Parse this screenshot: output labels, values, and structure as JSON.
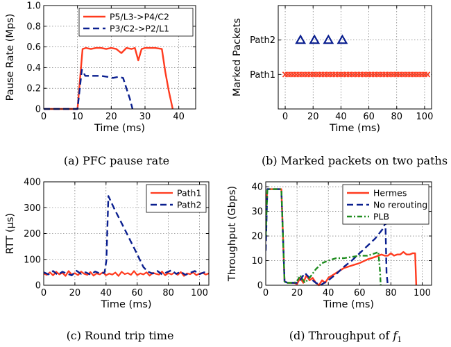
{
  "colors": {
    "red": "#ff3a1e",
    "blue": "#0a1f8f",
    "green": "#1e8c1e"
  },
  "chart_data": [
    {
      "id": "a",
      "type": "line",
      "caption": "(a)  PFC pause rate",
      "xlabel": "Time (ms)",
      "ylabel": "Pause Rate (Mps)",
      "xlim": [
        0,
        45
      ],
      "ylim": [
        0,
        1.0
      ],
      "xticks": [
        0,
        10,
        20,
        30,
        40
      ],
      "yticks": [
        0,
        0.2,
        0.4,
        0.6,
        0.8,
        1.0
      ],
      "ytick_labels": [
        "0",
        "0.2",
        "0.4",
        "0.6",
        "0.8",
        "1.0"
      ],
      "grid": true,
      "legend": "top-right",
      "series": [
        {
          "name": "P5/L3->P4/C2",
          "color": "#ff3a1e",
          "dash": "solid",
          "width": 2.4,
          "x": [
            0,
            10,
            11.5,
            12.5,
            14,
            15.5,
            17,
            18.5,
            20,
            21.5,
            23,
            24.5,
            26,
            27,
            28,
            29,
            30,
            31,
            33,
            35,
            36,
            37,
            38.2
          ],
          "y": [
            0,
            0,
            0.58,
            0.59,
            0.58,
            0.59,
            0.59,
            0.58,
            0.59,
            0.58,
            0.54,
            0.59,
            0.58,
            0.59,
            0.47,
            0.58,
            0.59,
            0.59,
            0.59,
            0.58,
            0.36,
            0.18,
            0
          ]
        },
        {
          "name": "P3/C2->P2/L1",
          "color": "#0a1f8f",
          "dash": "dashed",
          "width": 2.4,
          "x": [
            0,
            10,
            11.3,
            12.3,
            13.5,
            15,
            17,
            19,
            20.5,
            22,
            23.5,
            24.5,
            25.5,
            26.3
          ],
          "y": [
            0,
            0,
            0.38,
            0.32,
            0.32,
            0.32,
            0.32,
            0.31,
            0.3,
            0.31,
            0.3,
            0.2,
            0.1,
            0
          ]
        }
      ]
    },
    {
      "id": "b",
      "type": "scatter",
      "caption": "(b)  Marked packets on two paths",
      "xlabel": "Time (ms)",
      "ylabel": "Marked Packets",
      "xlim": [
        -5,
        105
      ],
      "xticks": [
        0,
        20,
        40,
        60,
        80,
        100
      ],
      "categories": [
        "Path1",
        "Path2"
      ],
      "grid": true,
      "series": [
        {
          "name": "Path1",
          "marker": "x",
          "color": "#ff3a1e",
          "x": [
            0,
            2,
            4,
            6,
            8,
            10,
            12,
            14,
            16,
            18,
            20,
            22,
            24,
            26,
            28,
            30,
            32,
            34,
            36,
            38,
            40,
            42,
            44,
            46,
            48,
            50,
            52,
            54,
            56,
            58,
            60,
            62,
            64,
            66,
            68,
            70,
            72,
            74,
            76,
            78,
            80,
            82,
            84,
            86,
            88,
            90,
            92,
            94,
            96,
            98,
            100,
            102
          ]
        },
        {
          "name": "Path2",
          "marker": "triangle",
          "color": "#0a1f8f",
          "x": [
            11,
            21,
            31,
            41
          ]
        }
      ]
    },
    {
      "id": "c",
      "type": "line",
      "caption": "(c)  Round trip time",
      "xlabel": "Time (ms)",
      "ylabel": "RTT (μs)",
      "xlim": [
        0,
        106
      ],
      "ylim": [
        0,
        400
      ],
      "xticks": [
        0,
        20,
        40,
        60,
        80,
        100
      ],
      "yticks": [
        0,
        100,
        200,
        300,
        400
      ],
      "grid": true,
      "legend": "top-right",
      "series": [
        {
          "name": "Path1",
          "color": "#ff3a1e",
          "dash": "solid",
          "width": 2.2,
          "x": [
            0,
            2,
            4,
            6,
            8,
            10,
            12,
            14,
            16,
            18,
            20,
            22,
            24,
            26,
            28,
            30,
            32,
            34,
            36,
            38,
            40,
            42,
            44,
            46,
            48,
            50,
            52,
            54,
            56,
            58,
            60,
            62,
            64,
            66,
            68,
            70,
            72,
            74,
            76,
            78,
            80,
            82,
            84,
            86,
            88,
            90,
            92,
            94,
            96,
            98,
            100,
            102,
            104,
            106
          ],
          "y": [
            45,
            40,
            50,
            38,
            52,
            42,
            48,
            36,
            55,
            41,
            47,
            39,
            53,
            44,
            40,
            51,
            37,
            46,
            42,
            50,
            38,
            45,
            41,
            49,
            36,
            52,
            43,
            47,
            40,
            55,
            39,
            46,
            42,
            50,
            37,
            48,
            44,
            41,
            53,
            38,
            47,
            42,
            49,
            40,
            51,
            36,
            46,
            43,
            50,
            39,
            45,
            48,
            41,
            46
          ]
        },
        {
          "name": "Path2",
          "color": "#0a1f8f",
          "dash": "dashed",
          "width": 2.4,
          "x": [
            0,
            3,
            6,
            9,
            12,
            15,
            18,
            21,
            24,
            27,
            30,
            33,
            36,
            39,
            40.2,
            41.5,
            45,
            50,
            55,
            60,
            64,
            67,
            70,
            73,
            76,
            79,
            82,
            85,
            88,
            91,
            94,
            97,
            100,
            103,
            106
          ],
          "y": [
            50,
            42,
            55,
            40,
            52,
            45,
            38,
            56,
            44,
            50,
            41,
            53,
            46,
            48,
            95,
            345,
            300,
            240,
            180,
            120,
            70,
            52,
            45,
            55,
            42,
            50,
            58,
            44,
            52,
            40,
            48,
            55,
            43,
            50,
            46
          ]
        }
      ]
    },
    {
      "id": "d",
      "type": "line",
      "caption": "(d)  Throughput of ",
      "caption_var": "f",
      "caption_sub": "1",
      "xlabel": "Time (ms)",
      "ylabel": "Throughput (Gbps)",
      "xlim": [
        0,
        106
      ],
      "ylim": [
        0,
        42
      ],
      "xticks": [
        0,
        20,
        40,
        60,
        80,
        100
      ],
      "yticks": [
        0,
        10,
        20,
        30,
        40
      ],
      "grid": true,
      "legend": "top-right",
      "series": [
        {
          "name": "Hermes",
          "color": "#ff3a1e",
          "dash": "solid",
          "width": 2.4,
          "x": [
            0,
            1,
            2,
            3,
            10,
            12,
            14,
            18,
            20,
            22,
            24,
            26,
            28,
            30,
            32,
            34,
            36,
            38,
            40,
            45,
            50,
            55,
            60,
            65,
            70,
            72,
            74,
            76,
            78,
            80,
            82,
            84,
            86,
            88,
            90,
            92,
            94,
            95.5,
            96.2
          ],
          "y": [
            30,
            39,
            39,
            39,
            39,
            1.5,
            1,
            1,
            0.5,
            3,
            1,
            4,
            2,
            3,
            1,
            0,
            2,
            1,
            3,
            5,
            7,
            8,
            9,
            10.5,
            11.5,
            12,
            12.5,
            12,
            12,
            13,
            12,
            12.5,
            12.5,
            13.5,
            12.5,
            12.5,
            13,
            13,
            0
          ]
        },
        {
          "name": "No rerouting",
          "color": "#0a1f8f",
          "dash": "dashed",
          "width": 2.4,
          "x": [
            0,
            1,
            2,
            3,
            10,
            12,
            14,
            18,
            20,
            22,
            25,
            28,
            32,
            35,
            40,
            45,
            50,
            55,
            60,
            65,
            70,
            75,
            76.5,
            77.2,
            78
          ],
          "y": [
            14,
            39,
            39,
            39,
            39,
            1.5,
            1,
            1,
            1,
            2,
            5,
            3,
            1,
            0,
            2,
            4.5,
            7.5,
            10,
            13,
            16,
            19,
            23,
            25.5,
            5,
            0
          ]
        },
        {
          "name": "PLB",
          "color": "#1e8c1e",
          "dash": "dashdot",
          "width": 2.4,
          "x": [
            0,
            1,
            2,
            3,
            10,
            12,
            14,
            18,
            20,
            22,
            25,
            28,
            32,
            36,
            40,
            45,
            50,
            55,
            60,
            65,
            70,
            72,
            73,
            73.5
          ],
          "y": [
            20,
            39,
            39,
            39,
            39,
            1.5,
            1,
            1,
            1.5,
            4,
            1,
            3,
            6.5,
            9,
            10,
            11,
            11,
            11.5,
            12,
            12,
            13,
            13.5,
            6,
            0
          ]
        }
      ]
    }
  ]
}
